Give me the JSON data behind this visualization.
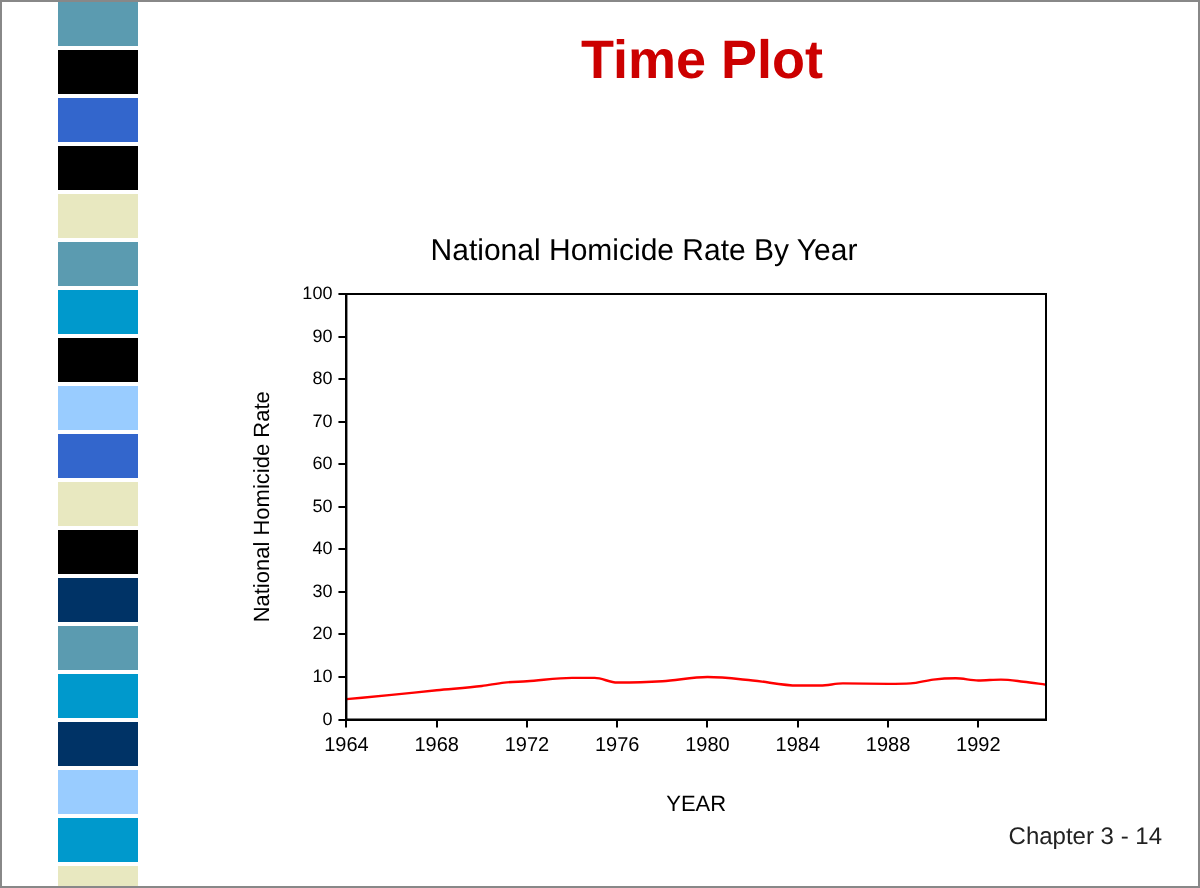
{
  "chart_data": {
    "type": "line",
    "title": "National Homicide Rate By Year",
    "xlabel": "YEAR",
    "ylabel": "National Homicide Rate",
    "annotations": [
      "Time Plot",
      "Chapter 3 - 14"
    ],
    "x": [
      1964,
      1966,
      1968,
      1970,
      1971,
      1972,
      1974,
      1975,
      1976,
      1978,
      1980,
      1982,
      1984,
      1985,
      1986,
      1988,
      1989,
      1990,
      1991,
      1992,
      1993,
      1994,
      1995
    ],
    "series": [
      {
        "color": "#ff0000",
        "values": [
          4.8,
          5.8,
          6.9,
          7.9,
          8.7,
          9.0,
          9.8,
          9.8,
          8.7,
          9.0,
          10.0,
          9.2,
          8.0,
          8.0,
          8.5,
          8.4,
          8.5,
          9.4,
          9.7,
          9.2,
          9.4,
          8.9,
          8.2
        ]
      }
    ],
    "xlim": [
      1964,
      1995
    ],
    "xticks": [
      1964,
      1968,
      1972,
      1976,
      1980,
      1984,
      1988,
      1992
    ],
    "ylim": [
      0,
      100
    ],
    "yticks": [
      0,
      10,
      20,
      30,
      40,
      50,
      60,
      70,
      80,
      90,
      100
    ],
    "grid": false,
    "legend": false,
    "marker": "none",
    "line_style": "solid"
  }
}
